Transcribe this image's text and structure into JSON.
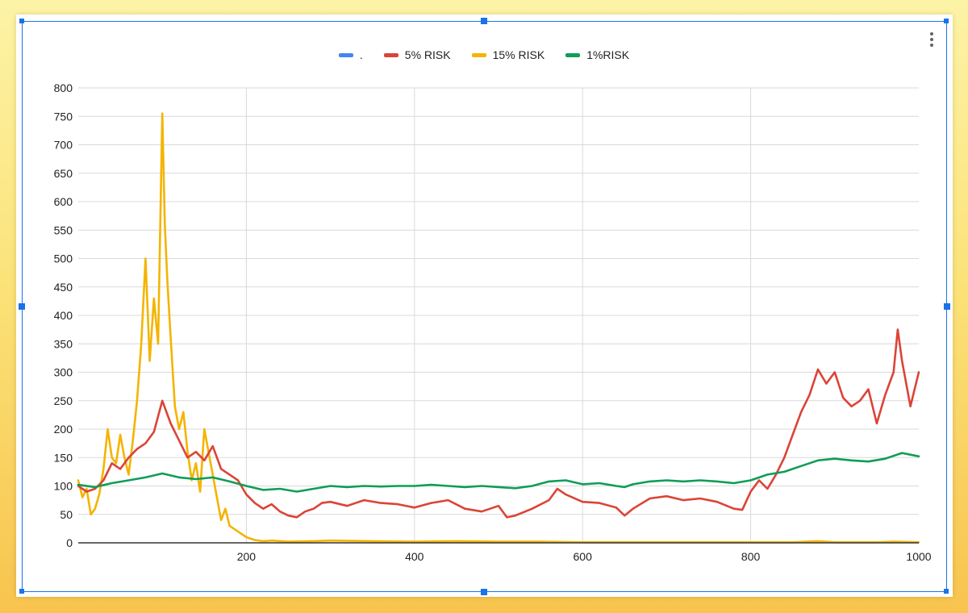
{
  "chart_data": {
    "type": "line",
    "xlim": [
      0,
      1000
    ],
    "ylim": [
      0,
      800
    ],
    "x_ticks": [
      "200",
      "400",
      "600",
      "800",
      "1000"
    ],
    "y_ticks": [
      "0",
      "50",
      "100",
      "150",
      "200",
      "250",
      "300",
      "350",
      "400",
      "450",
      "500",
      "550",
      "600",
      "650",
      "700",
      "750",
      "800"
    ],
    "legend_position": "top-center",
    "grid": true,
    "series": [
      {
        "name": ".",
        "color": "#4285f4",
        "x": [],
        "y": []
      },
      {
        "name": "5% RISK",
        "color": "#db4437",
        "x": [
          0,
          10,
          20,
          30,
          40,
          50,
          60,
          70,
          80,
          90,
          100,
          110,
          120,
          130,
          140,
          150,
          160,
          170,
          180,
          190,
          200,
          210,
          220,
          230,
          240,
          250,
          260,
          270,
          280,
          290,
          300,
          320,
          340,
          360,
          380,
          400,
          420,
          440,
          460,
          480,
          500,
          510,
          520,
          540,
          560,
          570,
          580,
          600,
          620,
          640,
          650,
          660,
          680,
          700,
          720,
          740,
          760,
          780,
          790,
          800,
          810,
          820,
          830,
          840,
          850,
          860,
          870,
          880,
          890,
          900,
          910,
          920,
          930,
          940,
          950,
          960,
          970,
          975,
          980,
          990,
          1000
        ],
        "y": [
          100,
          90,
          95,
          110,
          140,
          130,
          150,
          165,
          175,
          195,
          250,
          210,
          180,
          150,
          160,
          145,
          170,
          130,
          120,
          110,
          85,
          70,
          60,
          68,
          55,
          48,
          45,
          55,
          60,
          70,
          72,
          65,
          75,
          70,
          68,
          62,
          70,
          75,
          60,
          55,
          65,
          45,
          48,
          60,
          75,
          95,
          85,
          72,
          70,
          62,
          48,
          60,
          78,
          82,
          75,
          78,
          72,
          60,
          58,
          90,
          110,
          95,
          120,
          150,
          190,
          230,
          260,
          305,
          280,
          300,
          255,
          240,
          250,
          270,
          210,
          260,
          300,
          375,
          320,
          240,
          300
        ]
      },
      {
        "name": "15% RISK",
        "color": "#f4b400",
        "x": [
          0,
          5,
          10,
          15,
          20,
          25,
          30,
          35,
          40,
          45,
          50,
          55,
          60,
          65,
          70,
          75,
          80,
          85,
          90,
          95,
          100,
          103,
          106,
          110,
          115,
          120,
          125,
          130,
          135,
          140,
          145,
          150,
          155,
          160,
          165,
          170,
          175,
          180,
          190,
          200,
          210,
          220,
          230,
          250,
          280,
          300,
          350,
          400,
          450,
          500,
          550,
          600,
          650,
          700,
          750,
          800,
          850,
          880,
          900,
          950,
          970,
          1000
        ],
        "y": [
          110,
          80,
          95,
          50,
          60,
          85,
          130,
          200,
          150,
          140,
          190,
          150,
          120,
          180,
          250,
          350,
          500,
          320,
          430,
          350,
          755,
          560,
          460,
          360,
          240,
          200,
          230,
          160,
          110,
          140,
          90,
          200,
          160,
          120,
          80,
          40,
          60,
          30,
          20,
          10,
          5,
          3,
          4,
          2,
          3,
          4,
          3,
          2,
          3,
          2,
          2,
          1,
          1,
          1,
          1,
          1,
          1,
          3,
          1,
          1,
          2,
          1
        ]
      },
      {
        "name": "1%RISK",
        "color": "#0f9d58",
        "x": [
          0,
          20,
          40,
          60,
          80,
          100,
          120,
          140,
          160,
          180,
          200,
          220,
          240,
          260,
          280,
          300,
          320,
          340,
          360,
          380,
          400,
          420,
          440,
          460,
          480,
          500,
          520,
          540,
          560,
          580,
          600,
          620,
          640,
          650,
          660,
          680,
          700,
          720,
          740,
          760,
          780,
          800,
          820,
          840,
          860,
          880,
          900,
          920,
          940,
          960,
          980,
          1000
        ],
        "y": [
          102,
          98,
          105,
          110,
          115,
          122,
          115,
          112,
          115,
          108,
          100,
          93,
          95,
          90,
          95,
          100,
          98,
          100,
          99,
          100,
          100,
          102,
          100,
          98,
          100,
          98,
          96,
          100,
          108,
          110,
          103,
          105,
          100,
          98,
          103,
          108,
          110,
          108,
          110,
          108,
          105,
          110,
          120,
          125,
          135,
          145,
          148,
          145,
          143,
          148,
          158,
          152
        ]
      }
    ]
  }
}
